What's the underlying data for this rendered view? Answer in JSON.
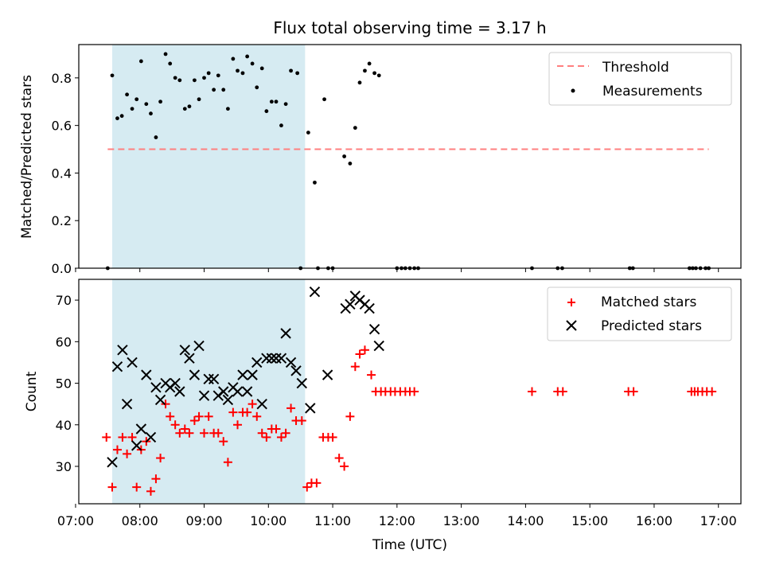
{
  "chart_data": [
    {
      "type": "scatter",
      "title": "Flux total observing time = 3.17 h",
      "xlabel": "",
      "ylabel": "Matched/Predicted stars",
      "xlim": [
        7.05,
        17.35
      ],
      "ylim": [
        0.0,
        0.94
      ],
      "xticks": [
        "07:00",
        "08:00",
        "09:00",
        "10:00",
        "11:00",
        "12:00",
        "13:00",
        "14:00",
        "15:00",
        "16:00",
        "17:00"
      ],
      "yticks": [
        "0.0",
        "0.2",
        "0.4",
        "0.6",
        "0.8"
      ],
      "ytick_values": [
        0.0,
        0.2,
        0.4,
        0.6,
        0.8
      ],
      "shaded_region": [
        7.57,
        10.57
      ],
      "threshold": {
        "label": "Threshold",
        "value": 0.5,
        "x_range": [
          7.5,
          16.85
        ],
        "color": "#ff7f7f"
      },
      "series": [
        {
          "name": "Measurements",
          "color": "#000000",
          "points": [
            [
              7.5,
              0.0
            ],
            [
              7.57,
              0.81
            ],
            [
              7.65,
              0.63
            ],
            [
              7.72,
              0.64
            ],
            [
              7.8,
              0.73
            ],
            [
              7.88,
              0.67
            ],
            [
              7.95,
              0.71
            ],
            [
              8.02,
              0.87
            ],
            [
              8.1,
              0.69
            ],
            [
              8.17,
              0.65
            ],
            [
              8.25,
              0.55
            ],
            [
              8.32,
              0.7
            ],
            [
              8.4,
              0.9
            ],
            [
              8.47,
              0.86
            ],
            [
              8.55,
              0.8
            ],
            [
              8.62,
              0.79
            ],
            [
              8.7,
              0.67
            ],
            [
              8.77,
              0.68
            ],
            [
              8.85,
              0.79
            ],
            [
              8.92,
              0.71
            ],
            [
              9.0,
              0.8
            ],
            [
              9.07,
              0.82
            ],
            [
              9.15,
              0.75
            ],
            [
              9.22,
              0.81
            ],
            [
              9.3,
              0.75
            ],
            [
              9.37,
              0.67
            ],
            [
              9.45,
              0.88
            ],
            [
              9.52,
              0.83
            ],
            [
              9.6,
              0.82
            ],
            [
              9.67,
              0.89
            ],
            [
              9.75,
              0.86
            ],
            [
              9.82,
              0.76
            ],
            [
              9.9,
              0.84
            ],
            [
              9.97,
              0.66
            ],
            [
              10.05,
              0.7
            ],
            [
              10.12,
              0.7
            ],
            [
              10.2,
              0.6
            ],
            [
              10.27,
              0.69
            ],
            [
              10.35,
              0.83
            ],
            [
              10.45,
              0.82
            ],
            [
              10.5,
              0.0
            ],
            [
              10.62,
              0.57
            ],
            [
              10.72,
              0.36
            ],
            [
              10.77,
              0.0
            ],
            [
              10.87,
              0.71
            ],
            [
              10.93,
              0.0
            ],
            [
              11.0,
              0.0
            ],
            [
              11.18,
              0.47
            ],
            [
              11.27,
              0.44
            ],
            [
              11.35,
              0.59
            ],
            [
              11.42,
              0.78
            ],
            [
              11.5,
              0.83
            ],
            [
              11.57,
              0.86
            ],
            [
              11.65,
              0.82
            ],
            [
              11.72,
              0.81
            ],
            [
              12.0,
              0.0
            ],
            [
              12.07,
              0.0
            ],
            [
              12.13,
              0.0
            ],
            [
              12.2,
              0.0
            ],
            [
              12.27,
              0.0
            ],
            [
              12.33,
              0.0
            ],
            [
              14.1,
              0.0
            ],
            [
              14.5,
              0.0
            ],
            [
              14.57,
              0.0
            ],
            [
              15.62,
              0.0
            ],
            [
              15.67,
              0.0
            ],
            [
              16.55,
              0.0
            ],
            [
              16.6,
              0.0
            ],
            [
              16.65,
              0.0
            ],
            [
              16.72,
              0.0
            ],
            [
              16.8,
              0.0
            ],
            [
              16.85,
              0.0
            ]
          ]
        }
      ],
      "legend": {
        "position": "top-right",
        "entries": [
          "Threshold",
          "Measurements"
        ]
      }
    },
    {
      "type": "scatter",
      "title": "",
      "xlabel": "Time (UTC)",
      "ylabel": "Count",
      "xlim": [
        7.05,
        17.35
      ],
      "ylim": [
        21,
        75
      ],
      "xticks": [
        "07:00",
        "08:00",
        "09:00",
        "10:00",
        "11:00",
        "12:00",
        "13:00",
        "14:00",
        "15:00",
        "16:00",
        "17:00"
      ],
      "yticks": [
        "30",
        "40",
        "50",
        "60",
        "70"
      ],
      "ytick_values": [
        30,
        40,
        50,
        60,
        70
      ],
      "shaded_region": [
        7.57,
        10.57
      ],
      "series": [
        {
          "name": "Matched stars",
          "marker": "plus",
          "color": "#ff0000",
          "points": [
            [
              7.48,
              37
            ],
            [
              7.57,
              25
            ],
            [
              7.65,
              34
            ],
            [
              7.73,
              37
            ],
            [
              7.8,
              33
            ],
            [
              7.88,
              37
            ],
            [
              7.95,
              25
            ],
            [
              8.02,
              34
            ],
            [
              8.1,
              36
            ],
            [
              8.17,
              24
            ],
            [
              8.25,
              27
            ],
            [
              8.32,
              32
            ],
            [
              8.4,
              45
            ],
            [
              8.47,
              42
            ],
            [
              8.55,
              40
            ],
            [
              8.62,
              38
            ],
            [
              8.7,
              39
            ],
            [
              8.77,
              38
            ],
            [
              8.85,
              41
            ],
            [
              8.92,
              42
            ],
            [
              9.0,
              38
            ],
            [
              9.07,
              42
            ],
            [
              9.15,
              38
            ],
            [
              9.22,
              38
            ],
            [
              9.3,
              36
            ],
            [
              9.37,
              31
            ],
            [
              9.45,
              43
            ],
            [
              9.52,
              40
            ],
            [
              9.6,
              43
            ],
            [
              9.67,
              43
            ],
            [
              9.75,
              45
            ],
            [
              9.82,
              42
            ],
            [
              9.9,
              38
            ],
            [
              9.97,
              37
            ],
            [
              10.05,
              39
            ],
            [
              10.12,
              39
            ],
            [
              10.2,
              37
            ],
            [
              10.27,
              38
            ],
            [
              10.35,
              44
            ],
            [
              10.43,
              41
            ],
            [
              10.52,
              41
            ],
            [
              10.6,
              25
            ],
            [
              10.67,
              26
            ],
            [
              10.75,
              26
            ],
            [
              10.85,
              37
            ],
            [
              10.93,
              37
            ],
            [
              11.0,
              37
            ],
            [
              11.1,
              32
            ],
            [
              11.18,
              30
            ],
            [
              11.27,
              42
            ],
            [
              11.35,
              54
            ],
            [
              11.42,
              57
            ],
            [
              11.5,
              58
            ],
            [
              11.6,
              52
            ],
            [
              11.67,
              48
            ],
            [
              11.75,
              48
            ],
            [
              11.82,
              48
            ],
            [
              11.9,
              48
            ],
            [
              11.97,
              48
            ],
            [
              12.05,
              48
            ],
            [
              12.13,
              48
            ],
            [
              12.2,
              48
            ],
            [
              12.27,
              48
            ],
            [
              14.1,
              48
            ],
            [
              14.5,
              48
            ],
            [
              14.58,
              48
            ],
            [
              15.6,
              48
            ],
            [
              15.68,
              48
            ],
            [
              16.58,
              48
            ],
            [
              16.63,
              48
            ],
            [
              16.68,
              48
            ],
            [
              16.75,
              48
            ],
            [
              16.82,
              48
            ],
            [
              16.9,
              48
            ]
          ]
        },
        {
          "name": "Predicted stars",
          "marker": "x",
          "color": "#000000",
          "points": [
            [
              7.57,
              31
            ],
            [
              7.65,
              54
            ],
            [
              7.73,
              58
            ],
            [
              7.8,
              45
            ],
            [
              7.88,
              55
            ],
            [
              7.95,
              35
            ],
            [
              8.02,
              39
            ],
            [
              8.1,
              52
            ],
            [
              8.17,
              37
            ],
            [
              8.25,
              49
            ],
            [
              8.32,
              46
            ],
            [
              8.4,
              50
            ],
            [
              8.47,
              49
            ],
            [
              8.55,
              50
            ],
            [
              8.62,
              48
            ],
            [
              8.7,
              58
            ],
            [
              8.77,
              56
            ],
            [
              8.85,
              52
            ],
            [
              8.92,
              59
            ],
            [
              9.0,
              47
            ],
            [
              9.07,
              51
            ],
            [
              9.15,
              51
            ],
            [
              9.22,
              47
            ],
            [
              9.3,
              48
            ],
            [
              9.37,
              46
            ],
            [
              9.45,
              49
            ],
            [
              9.52,
              48
            ],
            [
              9.6,
              52
            ],
            [
              9.67,
              48
            ],
            [
              9.75,
              52
            ],
            [
              9.82,
              55
            ],
            [
              9.9,
              45
            ],
            [
              9.97,
              56
            ],
            [
              10.05,
              56
            ],
            [
              10.12,
              56
            ],
            [
              10.2,
              56
            ],
            [
              10.27,
              62
            ],
            [
              10.35,
              55
            ],
            [
              10.43,
              53
            ],
            [
              10.52,
              50
            ],
            [
              10.65,
              44
            ],
            [
              10.72,
              72
            ],
            [
              10.92,
              52
            ],
            [
              11.2,
              68
            ],
            [
              11.27,
              69
            ],
            [
              11.35,
              71
            ],
            [
              11.42,
              70
            ],
            [
              11.5,
              69
            ],
            [
              11.57,
              68
            ],
            [
              11.65,
              63
            ],
            [
              11.72,
              59
            ]
          ]
        }
      ],
      "legend": {
        "position": "top-right",
        "entries": [
          "Matched stars",
          "Predicted stars"
        ]
      }
    }
  ]
}
